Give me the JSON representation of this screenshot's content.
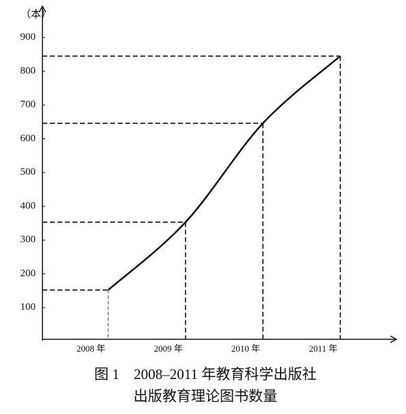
{
  "chart_data": {
    "type": "line",
    "title": "图 1　2008–2011 年教育科学出版社",
    "subtitle": "出版教育理论图书数量",
    "y_unit": "（本）",
    "categories": [
      "2008 年",
      "2009 年",
      "2010 年",
      "2011 年"
    ],
    "values": [
      152,
      353,
      646,
      845
    ],
    "color": "#111111",
    "ylim": [
      0,
      1000
    ],
    "yticks": [
      100,
      200,
      300,
      400,
      500,
      600,
      700,
      800,
      900
    ],
    "grid": false
  }
}
